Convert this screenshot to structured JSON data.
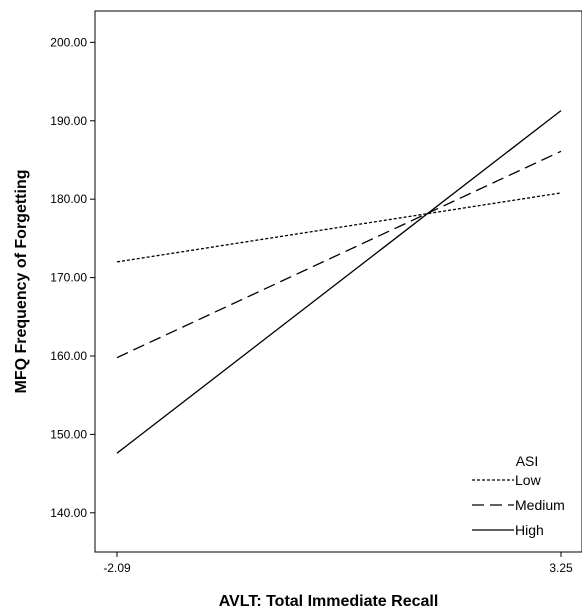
{
  "chart_data": {
    "type": "line",
    "xlabel": "AVLT: Total Immediate Recall",
    "ylabel": "MFQ Frequency of Forgetting",
    "xlim": [
      -2.09,
      3.25
    ],
    "ylim": [
      135,
      204
    ],
    "x_ticks": [
      "-2.09",
      "3.25"
    ],
    "y_ticks": [
      "140.00",
      "150.00",
      "160.00",
      "170.00",
      "180.00",
      "190.00",
      "200.00"
    ],
    "legend": {
      "title": "ASI",
      "position": "bottom-right"
    },
    "series": [
      {
        "name": "Low",
        "style": "dotted",
        "x": [
          -2.09,
          3.25
        ],
        "y": [
          172.0,
          180.8
        ]
      },
      {
        "name": "Medium",
        "style": "dashed",
        "x": [
          -2.09,
          3.25
        ],
        "y": [
          159.8,
          186.1
        ]
      },
      {
        "name": "High",
        "style": "solid",
        "x": [
          -2.09,
          3.25
        ],
        "y": [
          147.6,
          191.3
        ]
      }
    ],
    "grid": false
  }
}
